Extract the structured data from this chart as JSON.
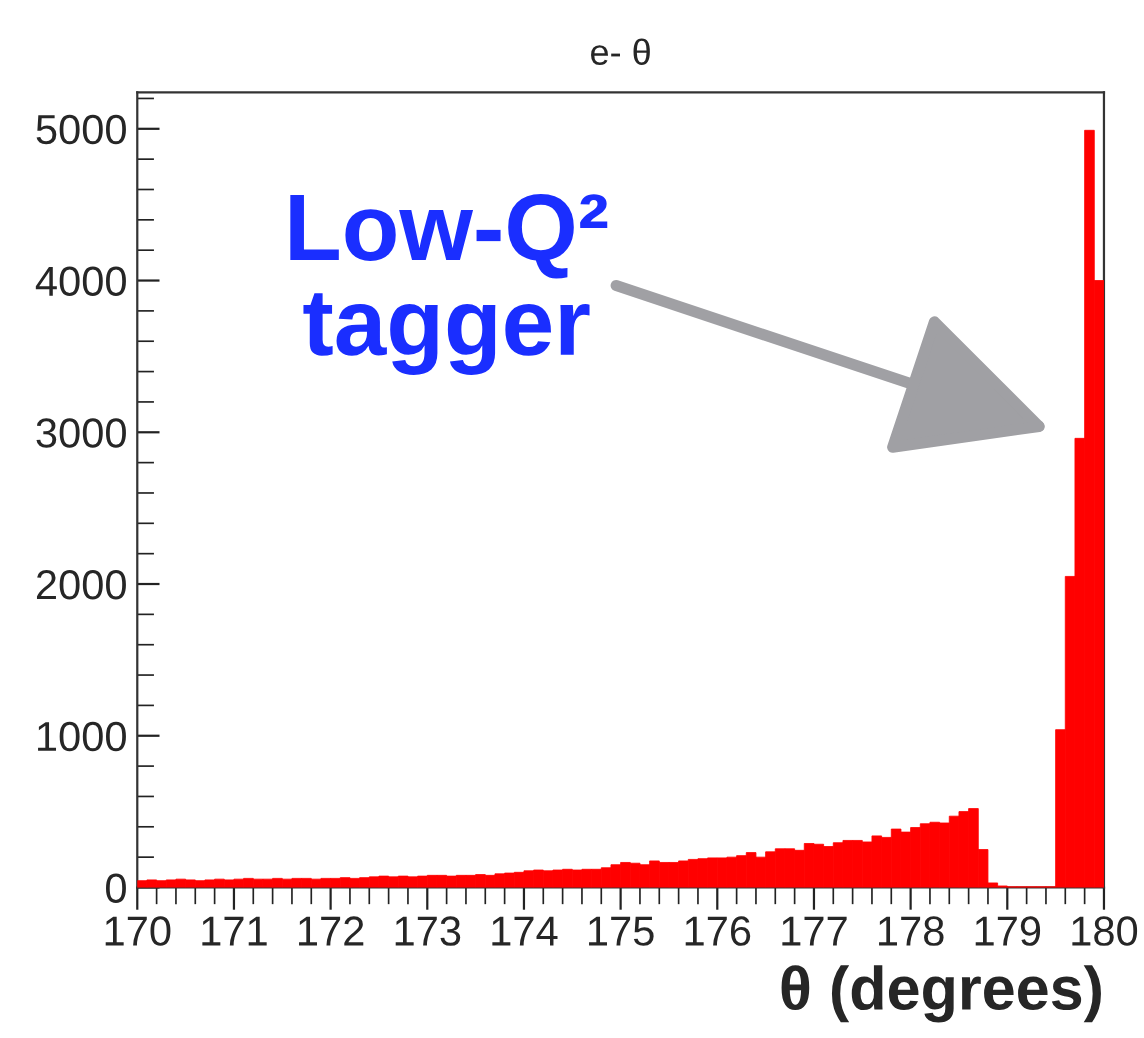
{
  "chart_data": {
    "type": "histogram",
    "title": "e- θ",
    "xlabel": "θ (degrees)",
    "bins": [
      170.0,
      170.1,
      170.2,
      170.3,
      170.4,
      170.5,
      170.6,
      170.7,
      170.8,
      170.9,
      171.0,
      171.1,
      171.2,
      171.3,
      171.4,
      171.5,
      171.6,
      171.7,
      171.8,
      171.9,
      172.0,
      172.1,
      172.2,
      172.3,
      172.4,
      172.5,
      172.6,
      172.7,
      172.8,
      172.9,
      173.0,
      173.1,
      173.2,
      173.3,
      173.4,
      173.5,
      173.6,
      173.7,
      173.8,
      173.9,
      174.0,
      174.1,
      174.2,
      174.3,
      174.4,
      174.5,
      174.6,
      174.7,
      174.8,
      174.9,
      175.0,
      175.1,
      175.2,
      175.3,
      175.4,
      175.5,
      175.6,
      175.7,
      175.8,
      175.9,
      176.0,
      176.1,
      176.2,
      176.3,
      176.4,
      176.5,
      176.6,
      176.7,
      176.8,
      176.9,
      177.0,
      177.1,
      177.2,
      177.3,
      177.4,
      177.5,
      177.6,
      177.7,
      177.8,
      177.9,
      178.0,
      178.1,
      178.2,
      178.3,
      178.4,
      178.5,
      178.6,
      178.7,
      178.8,
      178.9,
      179.0,
      179.1,
      179.2,
      179.3,
      179.4,
      179.5,
      179.6,
      179.7,
      179.8,
      179.9,
      180.0
    ],
    "values": [
      45,
      50,
      45,
      50,
      55,
      50,
      45,
      50,
      55,
      50,
      55,
      60,
      55,
      55,
      60,
      55,
      60,
      60,
      55,
      60,
      60,
      65,
      60,
      65,
      70,
      75,
      70,
      75,
      70,
      75,
      80,
      80,
      75,
      80,
      80,
      85,
      80,
      90,
      95,
      100,
      110,
      115,
      110,
      115,
      120,
      115,
      120,
      120,
      130,
      150,
      165,
      160,
      150,
      175,
      165,
      165,
      175,
      185,
      190,
      195,
      195,
      200,
      210,
      230,
      200,
      235,
      255,
      255,
      245,
      290,
      285,
      270,
      295,
      310,
      310,
      300,
      340,
      330,
      385,
      365,
      395,
      420,
      430,
      425,
      470,
      500,
      520,
      250,
      30,
      10,
      5,
      5,
      5,
      5,
      5,
      1040,
      2050,
      2960,
      4990,
      4000
    ],
    "color": "#ff0000",
    "xlim": [
      170,
      180
    ],
    "xticks": [
      170,
      171,
      172,
      173,
      174,
      175,
      176,
      177,
      178,
      179,
      180
    ],
    "ylim": [
      0,
      5240
    ],
    "yticks": [
      0,
      1000,
      2000,
      3000,
      4000,
      5000
    ],
    "annotations": [
      "Low-Q² tagger"
    ],
    "grid": false,
    "legend": false
  }
}
